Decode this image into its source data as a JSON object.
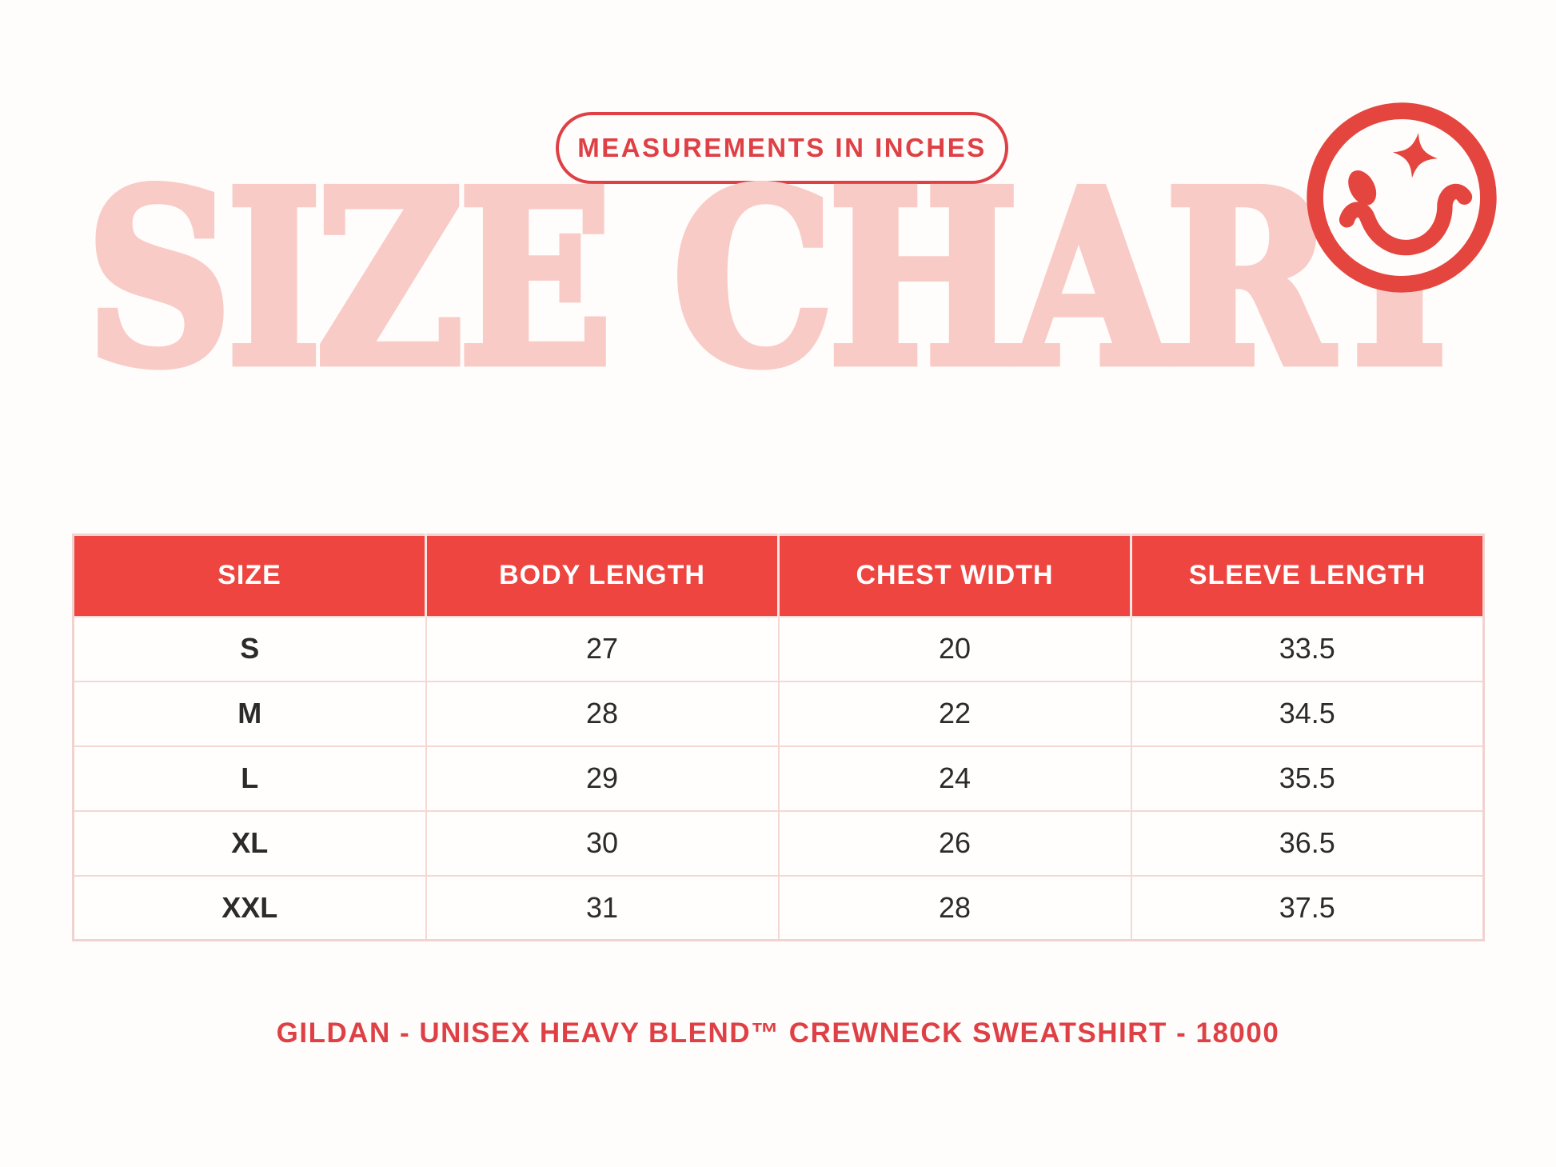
{
  "badge": {
    "label": "MEASUREMENTS IN INCHES"
  },
  "title": "SIZE CHART",
  "footer": "GILDAN - UNISEX HEAVY BLEND™ CREWNECK SWEATSHIRT - 18000",
  "icons": {
    "smiley": "winking-smiley-face-icon"
  },
  "colors": {
    "accent_red": "#DE4045",
    "header_red": "#EE4540",
    "title_pink": "#F9CBC7",
    "background": "#FFFDFB",
    "table_border_pink": "#F5D8D4",
    "text_dark": "#2E2A2B"
  },
  "chart_data": {
    "type": "table",
    "title": "SIZE CHART",
    "subtitle": "MEASUREMENTS IN INCHES",
    "columns": [
      "SIZE",
      "BODY LENGTH",
      "CHEST WIDTH",
      "SLEEVE LENGTH"
    ],
    "rows": [
      [
        "S",
        "27",
        "20",
        "33.5"
      ],
      [
        "M",
        "28",
        "22",
        "34.5"
      ],
      [
        "L",
        "29",
        "24",
        "35.5"
      ],
      [
        "XL",
        "30",
        "26",
        "36.5"
      ],
      [
        "XXL",
        "31",
        "28",
        "37.5"
      ]
    ],
    "caption": "GILDAN - UNISEX HEAVY BLEND™ CREWNECK SWEATSHIRT - 18000"
  }
}
